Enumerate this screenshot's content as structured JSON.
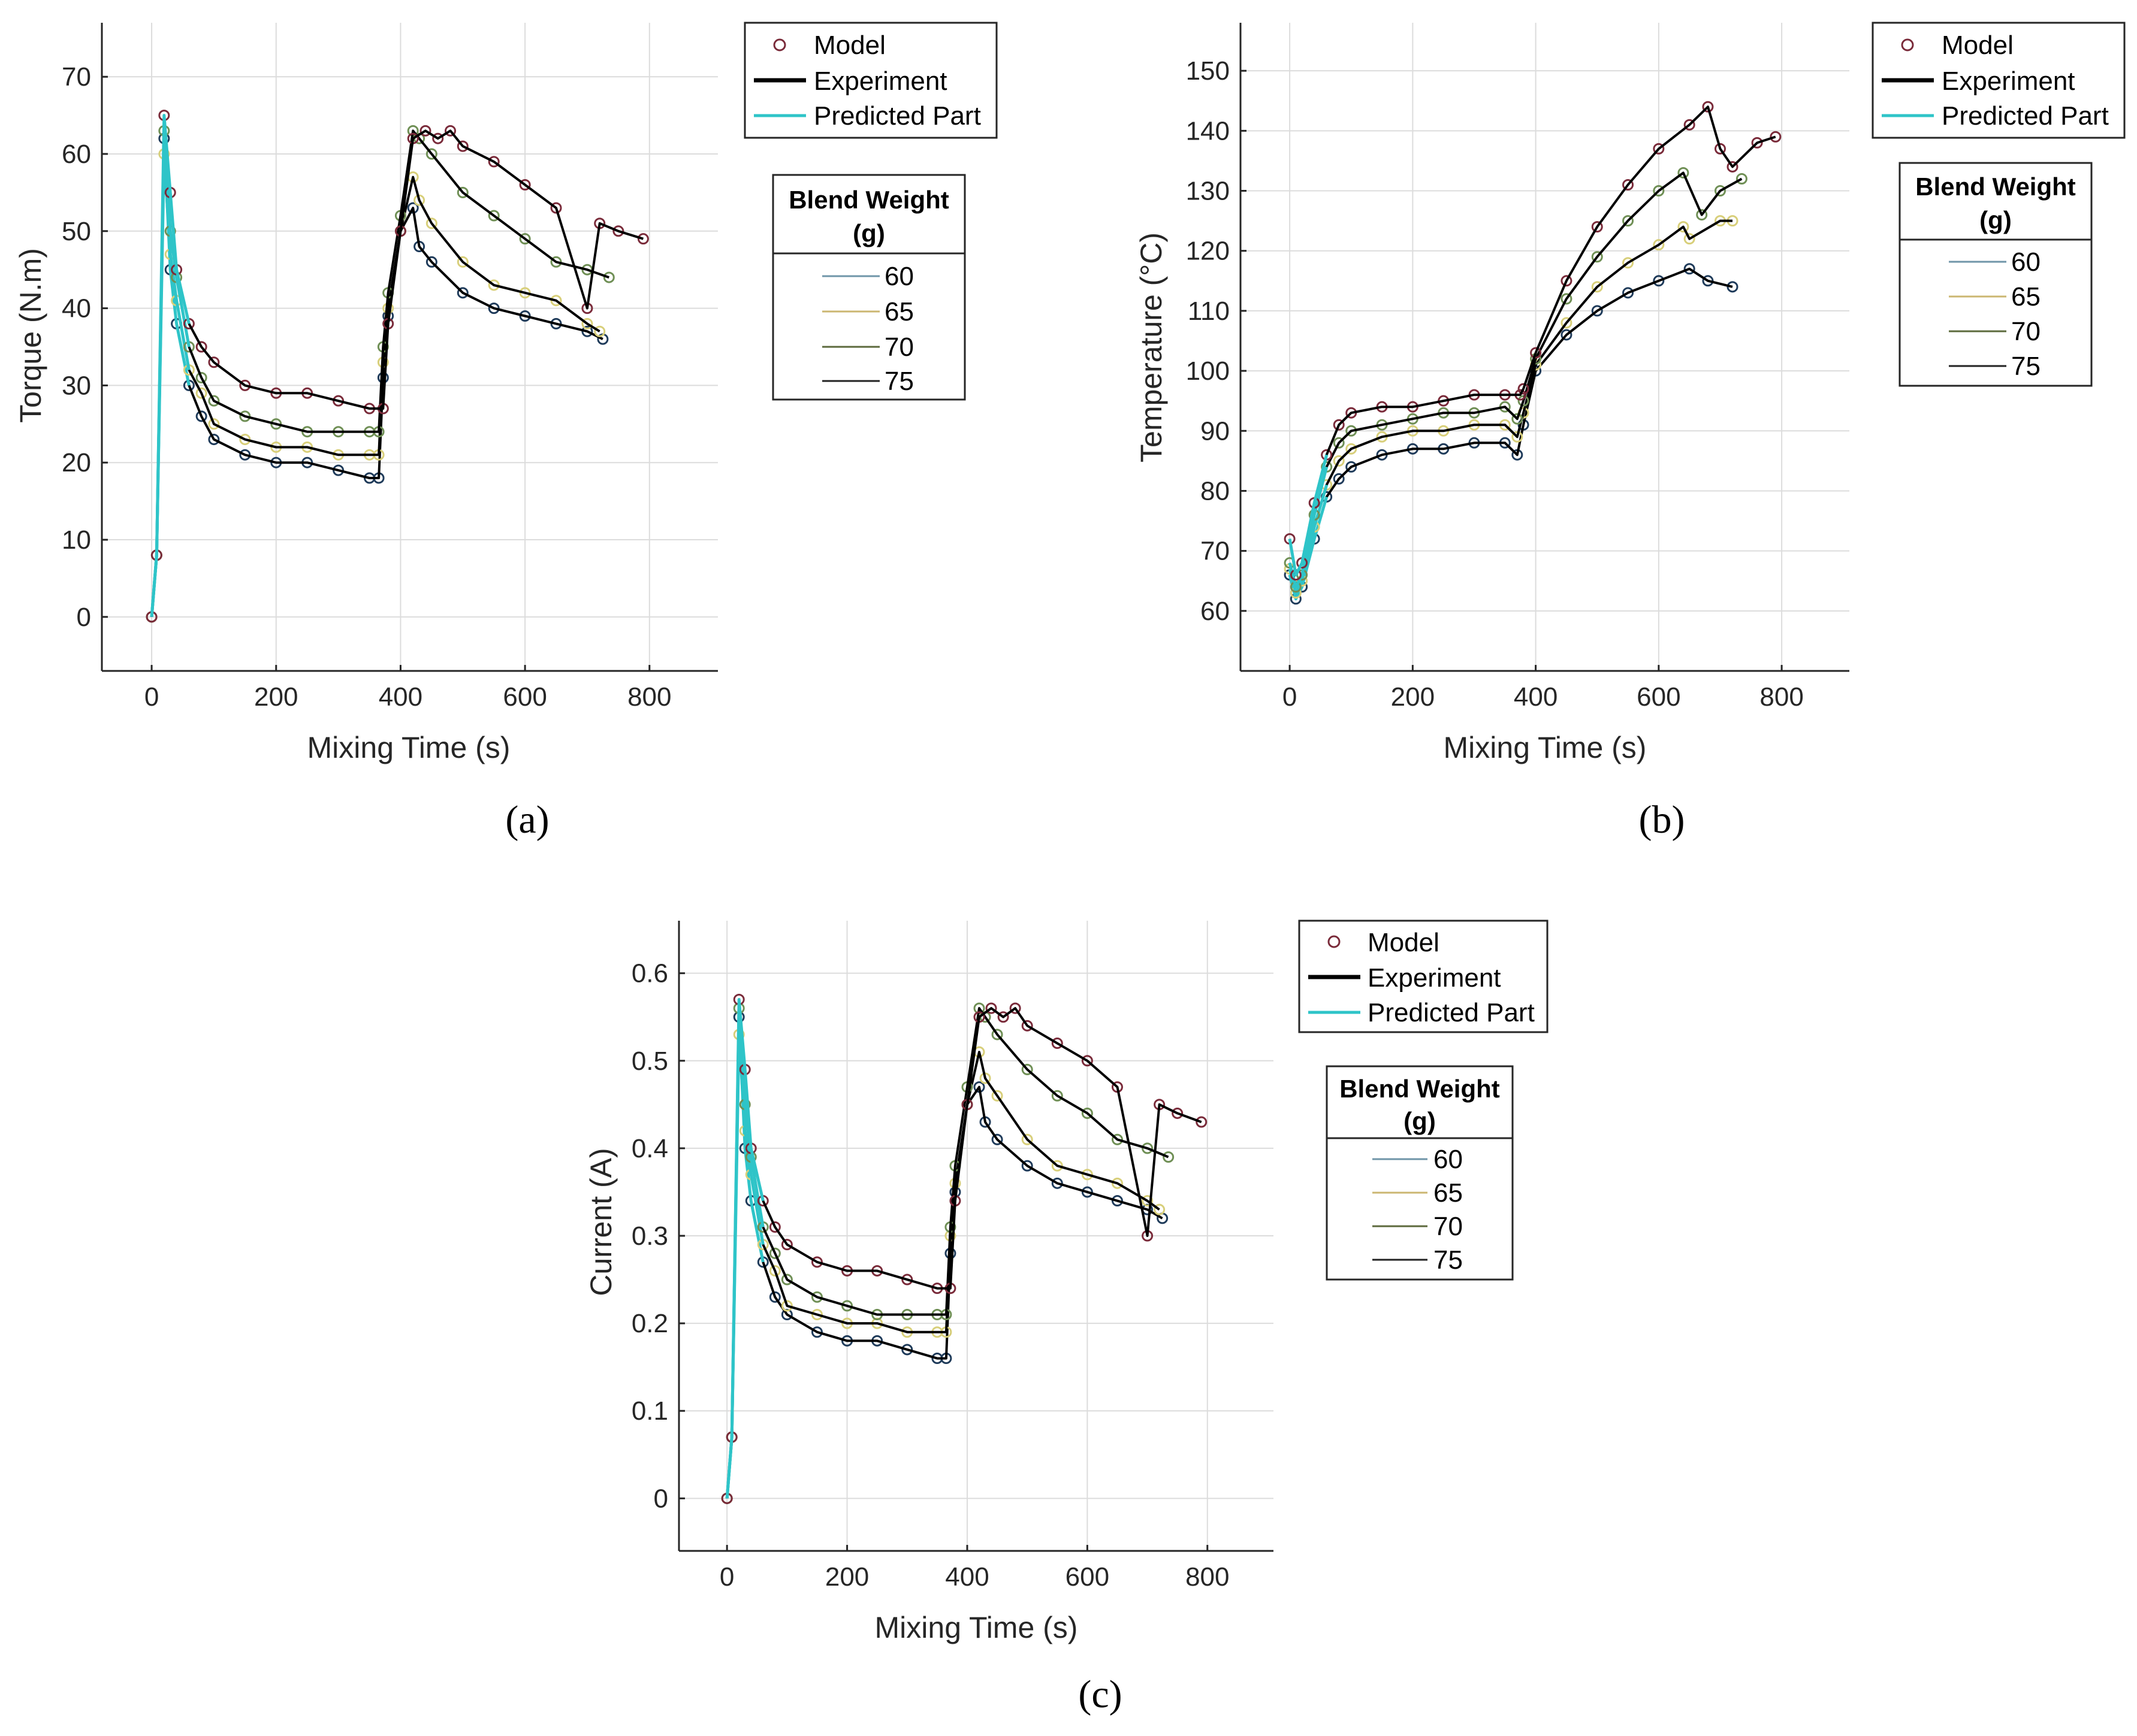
{
  "legend": {
    "model": "Model",
    "experiment": "Experiment",
    "predicted": "Predicted Part",
    "blend_title_line1": "Blend Weight",
    "blend_title_line2": "(g)",
    "blend_weights": [
      "60",
      "65",
      "70",
      "75"
    ],
    "blend_colors": [
      "#6f95a8",
      "#cbb670",
      "#5c6a3c",
      "#222222"
    ]
  },
  "colors": {
    "model_markers": [
      "#1f3b5a",
      "#d8cf7a",
      "#6f8f55",
      "#7a2b3a"
    ],
    "experiment": "#000000",
    "predicted": "#2ec4c8"
  },
  "chart_data": [
    {
      "id": "a",
      "panel_label": "(a)",
      "type": "line",
      "xlabel": "Mixing Time (s)",
      "ylabel": "Torque (N.m)",
      "xlim": [
        -80,
        910
      ],
      "ylim": [
        -7,
        77
      ],
      "xticks": [
        0,
        200,
        400,
        600,
        800
      ],
      "yticks": [
        0,
        10,
        20,
        30,
        40,
        50,
        60,
        70
      ],
      "grid": true,
      "series": [
        {
          "name": "60",
          "x": [
            0,
            8,
            20,
            30,
            40,
            60,
            80,
            100,
            150,
            200,
            250,
            300,
            350,
            365,
            372,
            380,
            400,
            420,
            430,
            450,
            500,
            550,
            600,
            650,
            700,
            725
          ],
          "y": [
            0,
            8,
            62,
            45,
            38,
            30,
            26,
            23,
            21,
            20,
            20,
            19,
            18,
            18,
            31,
            39,
            50,
            53,
            48,
            46,
            42,
            40,
            39,
            38,
            37,
            36
          ]
        },
        {
          "name": "65",
          "x": [
            0,
            8,
            20,
            30,
            40,
            60,
            80,
            100,
            150,
            200,
            250,
            300,
            350,
            365,
            372,
            380,
            400,
            420,
            430,
            450,
            500,
            550,
            600,
            650,
            700,
            720
          ],
          "y": [
            0,
            8,
            60,
            47,
            41,
            32,
            29,
            25,
            23,
            22,
            22,
            21,
            21,
            21,
            33,
            40,
            50,
            57,
            54,
            51,
            46,
            43,
            42,
            41,
            38,
            37
          ]
        },
        {
          "name": "70",
          "x": [
            0,
            8,
            20,
            30,
            40,
            60,
            80,
            100,
            150,
            200,
            250,
            300,
            350,
            365,
            372,
            380,
            400,
            420,
            430,
            450,
            500,
            550,
            600,
            650,
            700,
            735
          ],
          "y": [
            0,
            8,
            63,
            50,
            44,
            35,
            31,
            28,
            26,
            25,
            24,
            24,
            24,
            24,
            35,
            42,
            52,
            63,
            62,
            60,
            55,
            52,
            49,
            46,
            45,
            44
          ]
        },
        {
          "name": "75",
          "x": [
            0,
            8,
            20,
            30,
            40,
            60,
            80,
            100,
            150,
            200,
            250,
            300,
            350,
            372,
            380,
            400,
            420,
            440,
            460,
            480,
            500,
            550,
            600,
            650,
            700,
            720,
            750,
            790
          ],
          "y": [
            0,
            8,
            65,
            55,
            45,
            38,
            35,
            33,
            30,
            29,
            29,
            28,
            27,
            27,
            38,
            50,
            62,
            63,
            62,
            63,
            61,
            59,
            56,
            53,
            40,
            51,
            50,
            49
          ]
        }
      ]
    },
    {
      "id": "b",
      "panel_label": "(b)",
      "type": "line",
      "xlabel": "Mixing Time (s)",
      "ylabel": "Temperature (°C)",
      "xlim": [
        -80,
        910
      ],
      "ylim": [
        50,
        158
      ],
      "xticks": [
        0,
        200,
        400,
        600,
        800
      ],
      "yticks": [
        60,
        70,
        80,
        90,
        100,
        110,
        120,
        130,
        140,
        150
      ],
      "grid": true,
      "series": [
        {
          "name": "60",
          "x": [
            0,
            10,
            20,
            40,
            60,
            80,
            100,
            150,
            200,
            250,
            300,
            350,
            370,
            380,
            400,
            450,
            500,
            550,
            600,
            650,
            680,
            720
          ],
          "y": [
            66,
            62,
            64,
            72,
            79,
            82,
            84,
            86,
            87,
            87,
            88,
            88,
            86,
            91,
            100,
            106,
            110,
            113,
            115,
            117,
            115,
            114
          ]
        },
        {
          "name": "65",
          "x": [
            0,
            10,
            20,
            40,
            60,
            80,
            100,
            150,
            200,
            250,
            300,
            350,
            370,
            380,
            400,
            450,
            500,
            550,
            600,
            640,
            650,
            700,
            720
          ],
          "y": [
            67,
            63,
            65,
            74,
            81,
            85,
            87,
            89,
            90,
            90,
            91,
            91,
            89,
            93,
            101,
            108,
            114,
            118,
            121,
            124,
            122,
            125,
            125
          ]
        },
        {
          "name": "70",
          "x": [
            0,
            10,
            20,
            40,
            60,
            80,
            100,
            150,
            200,
            250,
            300,
            350,
            370,
            380,
            400,
            450,
            500,
            550,
            600,
            640,
            670,
            700,
            735
          ],
          "y": [
            68,
            64,
            66,
            76,
            84,
            88,
            90,
            91,
            92,
            93,
            93,
            94,
            92,
            95,
            102,
            112,
            119,
            125,
            130,
            133,
            126,
            130,
            132
          ]
        },
        {
          "name": "75",
          "x": [
            0,
            10,
            20,
            40,
            60,
            80,
            100,
            150,
            200,
            250,
            300,
            350,
            375,
            380,
            400,
            450,
            500,
            550,
            600,
            650,
            680,
            700,
            720,
            760,
            790
          ],
          "y": [
            72,
            66,
            68,
            78,
            86,
            91,
            93,
            94,
            94,
            95,
            96,
            96,
            96,
            97,
            103,
            115,
            124,
            131,
            137,
            141,
            144,
            137,
            134,
            138,
            139
          ]
        }
      ]
    },
    {
      "id": "c",
      "panel_label": "(c)",
      "type": "line",
      "xlabel": "Mixing Time (s)",
      "ylabel": "Current (A)",
      "xlim": [
        -80,
        910
      ],
      "ylim": [
        -0.06,
        0.66
      ],
      "xticks": [
        0,
        200,
        400,
        600,
        800
      ],
      "yticks": [
        0,
        0.1,
        0.2,
        0.3,
        0.4,
        0.5,
        0.6
      ],
      "grid": true,
      "series": [
        {
          "name": "60",
          "x": [
            0,
            8,
            20,
            30,
            40,
            60,
            80,
            100,
            150,
            200,
            250,
            300,
            350,
            365,
            372,
            380,
            400,
            420,
            430,
            450,
            500,
            550,
            600,
            650,
            700,
            725
          ],
          "y": [
            0,
            0.07,
            0.55,
            0.4,
            0.34,
            0.27,
            0.23,
            0.21,
            0.19,
            0.18,
            0.18,
            0.17,
            0.16,
            0.16,
            0.28,
            0.35,
            0.45,
            0.47,
            0.43,
            0.41,
            0.38,
            0.36,
            0.35,
            0.34,
            0.33,
            0.32
          ]
        },
        {
          "name": "65",
          "x": [
            0,
            8,
            20,
            30,
            40,
            60,
            80,
            100,
            150,
            200,
            250,
            300,
            350,
            365,
            372,
            380,
            400,
            420,
            430,
            450,
            500,
            550,
            600,
            650,
            700,
            720
          ],
          "y": [
            0,
            0.07,
            0.53,
            0.42,
            0.37,
            0.29,
            0.26,
            0.22,
            0.21,
            0.2,
            0.2,
            0.19,
            0.19,
            0.19,
            0.3,
            0.36,
            0.45,
            0.51,
            0.48,
            0.46,
            0.41,
            0.38,
            0.37,
            0.36,
            0.34,
            0.33
          ]
        },
        {
          "name": "70",
          "x": [
            0,
            8,
            20,
            30,
            40,
            60,
            80,
            100,
            150,
            200,
            250,
            300,
            350,
            365,
            372,
            380,
            400,
            420,
            430,
            450,
            500,
            550,
            600,
            650,
            700,
            735
          ],
          "y": [
            0,
            0.07,
            0.56,
            0.45,
            0.39,
            0.31,
            0.28,
            0.25,
            0.23,
            0.22,
            0.21,
            0.21,
            0.21,
            0.21,
            0.31,
            0.38,
            0.47,
            0.56,
            0.55,
            0.53,
            0.49,
            0.46,
            0.44,
            0.41,
            0.4,
            0.39
          ]
        },
        {
          "name": "75",
          "x": [
            0,
            8,
            20,
            30,
            40,
            60,
            80,
            100,
            150,
            200,
            250,
            300,
            350,
            372,
            380,
            400,
            420,
            440,
            460,
            480,
            500,
            550,
            600,
            650,
            700,
            720,
            750,
            790
          ],
          "y": [
            0,
            0.07,
            0.57,
            0.49,
            0.4,
            0.34,
            0.31,
            0.29,
            0.27,
            0.26,
            0.26,
            0.25,
            0.24,
            0.24,
            0.34,
            0.45,
            0.55,
            0.56,
            0.55,
            0.56,
            0.54,
            0.52,
            0.5,
            0.47,
            0.3,
            0.45,
            0.44,
            0.43
          ]
        }
      ]
    }
  ]
}
